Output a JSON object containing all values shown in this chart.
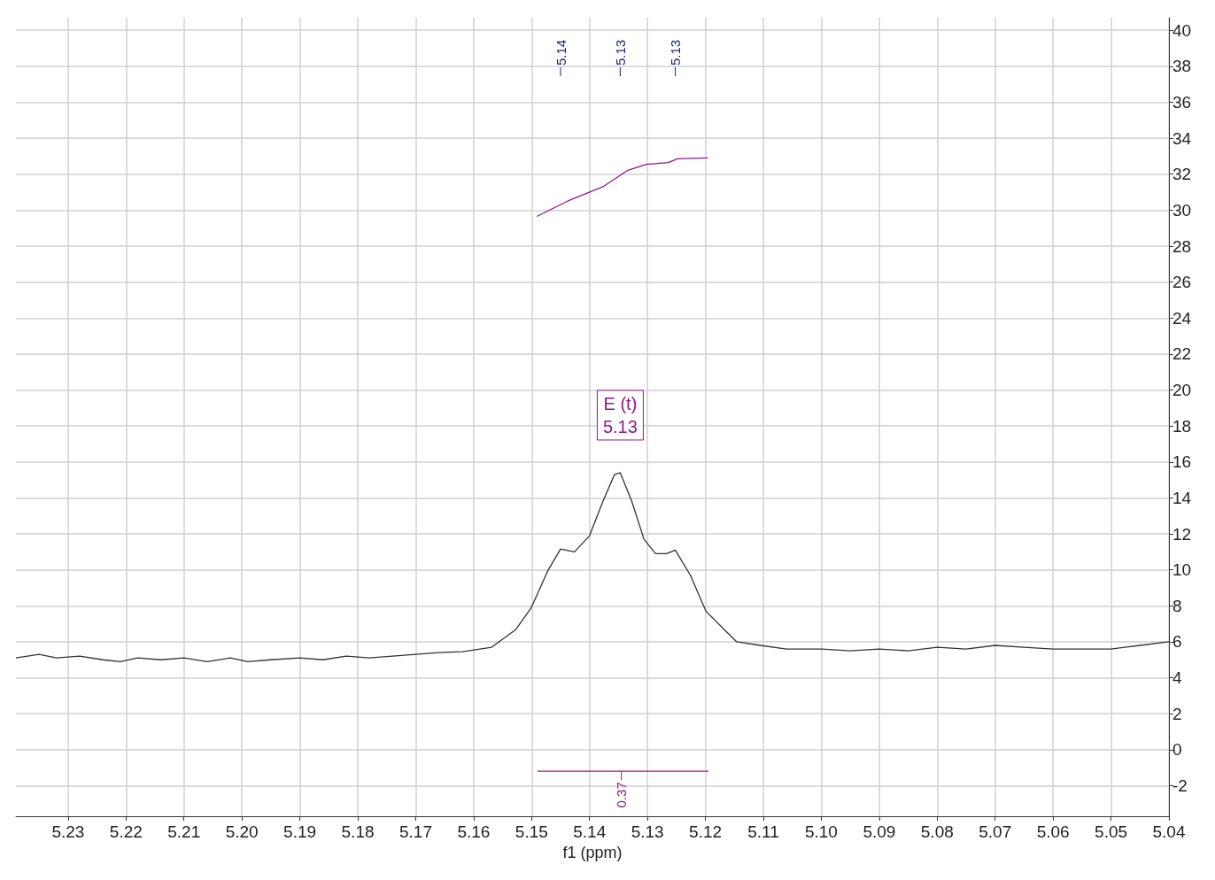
{
  "chart_data": {
    "type": "line",
    "xlabel": "f1 (ppm)",
    "xlim": [
      5.239,
      5.04
    ],
    "xticks": [
      5.23,
      5.22,
      5.21,
      {
        "value": 5.2,
        "label": "5.20"
      },
      5.19,
      5.18,
      5.17,
      5.16,
      5.15,
      5.14,
      5.13,
      5.12,
      5.11,
      {
        "value": 5.1,
        "label": "5.10"
      },
      5.09,
      5.08,
      5.07,
      5.06,
      5.05,
      5.04
    ],
    "ylim": [
      -3.7,
      40.7
    ],
    "yticks": [
      -2,
      0,
      2,
      4,
      6,
      8,
      10,
      12,
      14,
      16,
      18,
      20,
      22,
      24,
      26,
      28,
      30,
      32,
      34,
      36,
      38,
      40
    ],
    "grid": true,
    "marker": "none",
    "line_style": "solid",
    "series": [
      {
        "color": "#333333",
        "x": [
          5.239,
          5.235,
          5.232,
          5.228,
          5.224,
          5.221,
          5.218,
          5.214,
          5.21,
          5.206,
          5.202,
          5.199,
          5.195,
          5.19,
          5.186,
          5.182,
          5.178,
          5.174,
          5.17,
          5.166,
          5.1619,
          5.1569,
          5.1528,
          5.1501,
          5.1472,
          5.145,
          5.1426,
          5.14,
          5.1377,
          5.1357,
          5.1347,
          5.1327,
          5.1306,
          5.1286,
          5.1267,
          5.1252,
          5.1226,
          5.1199,
          5.1165,
          5.1146,
          5.1105,
          5.106,
          5.1,
          5.095,
          5.09,
          5.085,
          5.08,
          5.075,
          5.07,
          5.065,
          5.06,
          5.055,
          5.05,
          5.045,
          5.04
        ],
        "values": [
          5.1,
          5.3,
          5.1,
          5.2,
          5.0,
          4.9,
          5.1,
          5.0,
          5.1,
          4.9,
          5.1,
          4.9,
          5.0,
          5.1,
          5.0,
          5.2,
          5.1,
          5.2,
          5.3,
          5.4,
          5.45,
          5.7,
          6.66,
          7.87,
          9.95,
          11.16,
          11.0,
          11.9,
          13.8,
          15.3,
          15.4,
          13.8,
          11.7,
          10.9,
          10.9,
          11.1,
          9.7,
          7.7,
          6.6,
          6.0,
          5.8,
          5.6,
          5.6,
          5.5,
          5.6,
          5.5,
          5.7,
          5.6,
          5.8,
          5.7,
          5.6,
          5.6,
          5.6,
          5.8,
          6.0
        ]
      },
      {
        "color": "#8b1a8b",
        "x": [
          5.1491,
          5.1438,
          5.1377,
          5.1335,
          5.1302,
          5.1264,
          5.1249,
          5.1196
        ],
        "values": [
          29.65,
          30.5,
          31.3,
          32.2,
          32.55,
          32.65,
          32.85,
          32.9
        ]
      },
      {
        "color": "#8b1a8b",
        "x": [
          5.149,
          5.1195
        ],
        "values": [
          -1.2,
          -1.2
        ]
      }
    ],
    "annotations": [
      {
        "text": "5.14",
        "x": 5.145
      },
      {
        "text": "5.13",
        "x": 5.1347
      },
      {
        "text": "5.13",
        "x": 5.1252
      },
      "E (t)",
      "5.13",
      {
        "text": "0.37",
        "x": 5.1345,
        "y": -1.2
      }
    ]
  }
}
